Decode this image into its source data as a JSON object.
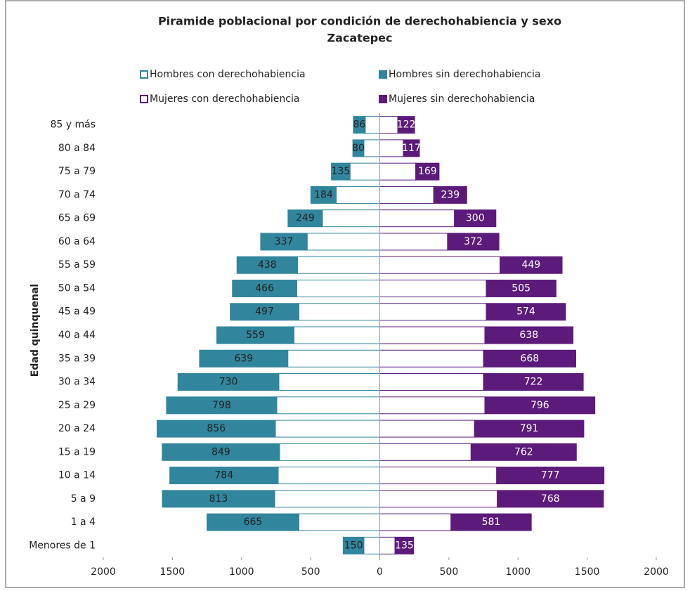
{
  "chart_data": {
    "type": "pyramid",
    "title": [
      "Piramide poblacional por condición de derechohabiencia  y sexo",
      "Zacatepec"
    ],
    "y_label": "Edad quinquenal",
    "categories": [
      "85 y más",
      "80 a 84",
      "75 a 79",
      "70 a 74",
      "65 a 69",
      "60 a 64",
      "55 a 59",
      "50 a 54",
      "45 a 49",
      "40 a 44",
      "35 a 39",
      "30 a 34",
      "25 a 29",
      "20 a 24",
      "15 a 19",
      "10 a 14",
      "5 a 9",
      "1 a 4",
      "Menores de 1"
    ],
    "series": [
      {
        "name": "Hombres con derechohabiencia",
        "color": "#31859c",
        "side": "left",
        "fill": "hollow",
        "values": [
          105,
          115,
          215,
          315,
          415,
          525,
          595,
          600,
          585,
          620,
          665,
          730,
          745,
          755,
          725,
          735,
          760,
          585,
          115
        ]
      },
      {
        "name": "Hombres sin derechohabiencia",
        "color": "#31859c",
        "side": "left",
        "fill": "solid",
        "labels": true,
        "values": [
          86,
          80,
          135,
          184,
          249,
          337,
          438,
          466,
          497,
          559,
          639,
          730,
          798,
          856,
          849,
          784,
          813,
          665,
          150
        ]
      },
      {
        "name": "Mujeres con derechohabiencia",
        "color": "#5c1a7a",
        "side": "right",
        "fill": "hollow",
        "values": [
          130,
          170,
          260,
          390,
          540,
          490,
          870,
          770,
          770,
          760,
          750,
          750,
          760,
          685,
          660,
          845,
          850,
          515,
          110
        ]
      },
      {
        "name": "Mujeres sin derechohabiencia",
        "color": "#5c1a7a",
        "side": "right",
        "fill": "solid",
        "labels": true,
        "values": [
          122,
          117,
          169,
          239,
          300,
          372,
          449,
          505,
          574,
          638,
          668,
          722,
          796,
          791,
          762,
          777,
          768,
          581,
          135
        ]
      }
    ],
    "xlim": [
      -2000,
      2000
    ],
    "xticks": [
      {
        "value": -2000,
        "label": "2000"
      },
      {
        "value": -1500,
        "label": "1500"
      },
      {
        "value": -1000,
        "label": "1000"
      },
      {
        "value": -500,
        "label": "500"
      },
      0,
      500,
      1000,
      1500,
      2000
    ]
  }
}
